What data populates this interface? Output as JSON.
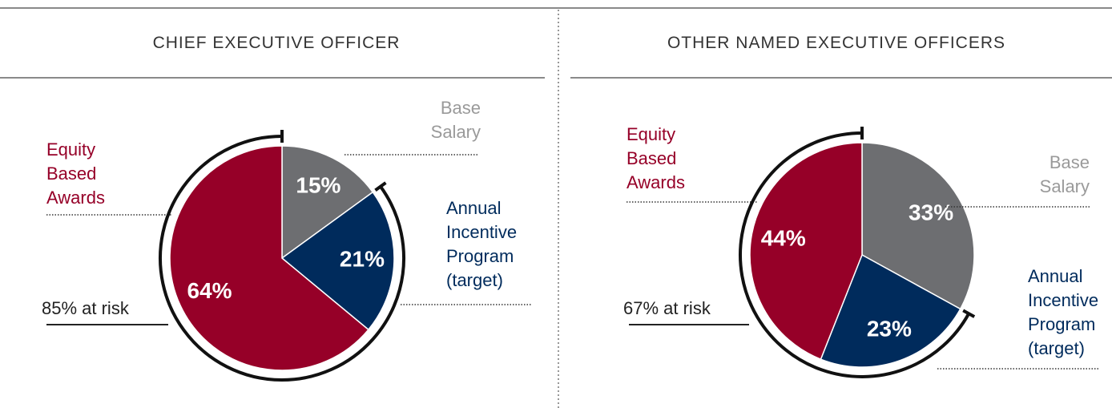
{
  "chart_data": [
    {
      "type": "pie",
      "title": "CHIEF EXECUTIVE OFFICER",
      "categories": [
        "Base Salary",
        "Annual Incentive Program (target)",
        "Equity Based Awards"
      ],
      "values": [
        15,
        21,
        64
      ],
      "value_labels": [
        "15%",
        "21%",
        "64%"
      ],
      "colors": [
        "#6d6e71",
        "#002b5c",
        "#960028"
      ],
      "annotation": "85% at risk"
    },
    {
      "type": "pie",
      "title": "OTHER NAMED EXECUTIVE OFFICERS",
      "categories": [
        "Base Salary",
        "Annual Incentive Program (target)",
        "Equity Based Awards"
      ],
      "values": [
        33,
        23,
        44
      ],
      "value_labels": [
        "33%",
        "23%",
        "44%"
      ],
      "colors": [
        "#6d6e71",
        "#002b5c",
        "#960028"
      ],
      "annotation": "67% at risk"
    }
  ]
}
